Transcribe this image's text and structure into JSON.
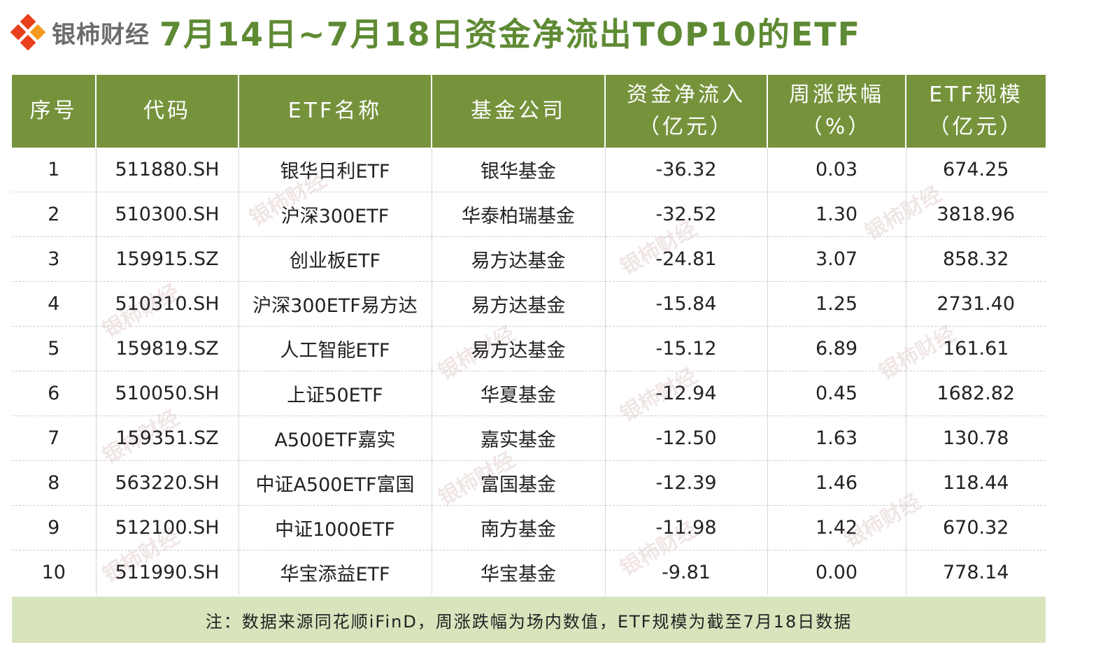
{
  "header": {
    "brand": "银柿财经",
    "title": "7月14日~7月18日资金净流出TOP10的ETF"
  },
  "colors": {
    "header_bg": "#76933c",
    "title": "#5e8a33",
    "footer_bg": "#d8e4bc",
    "logo": "#e8401c"
  },
  "icons": {
    "logo": "diamond-logo-icon"
  },
  "table": {
    "headers": [
      [
        "序号",
        ""
      ],
      [
        "代码",
        ""
      ],
      [
        "ETF名称",
        ""
      ],
      [
        "基金公司",
        ""
      ],
      [
        "资金净流入",
        "（亿元）"
      ],
      [
        "周涨跌幅",
        "（%）"
      ],
      [
        "ETF规模",
        "（亿元）"
      ]
    ],
    "rows": [
      [
        "1",
        "511880.SH",
        "银华日利ETF",
        "银华基金",
        "-36.32",
        "0.03",
        "674.25"
      ],
      [
        "2",
        "510300.SH",
        "沪深300ETF",
        "华泰柏瑞基金",
        "-32.52",
        "1.30",
        "3818.96"
      ],
      [
        "3",
        "159915.SZ",
        "创业板ETF",
        "易方达基金",
        "-24.81",
        "3.07",
        "858.32"
      ],
      [
        "4",
        "510310.SH",
        "沪深300ETF易方达",
        "易方达基金",
        "-15.84",
        "1.25",
        "2731.40"
      ],
      [
        "5",
        "159819.SZ",
        "人工智能ETF",
        "易方达基金",
        "-15.12",
        "6.89",
        "161.61"
      ],
      [
        "6",
        "510050.SH",
        "上证50ETF",
        "华夏基金",
        "-12.94",
        "0.45",
        "1682.82"
      ],
      [
        "7",
        "159351.SZ",
        "A500ETF嘉实",
        "嘉实基金",
        "-12.50",
        "1.63",
        "130.78"
      ],
      [
        "8",
        "563220.SH",
        "中证A500ETF富国",
        "富国基金",
        "-12.39",
        "1.46",
        "118.44"
      ],
      [
        "9",
        "512100.SH",
        "中证1000ETF",
        "南方基金",
        "-11.98",
        "1.42",
        "670.32"
      ],
      [
        "10",
        "511990.SH",
        "华宝添益ETF",
        "华宝基金",
        "-9.81",
        "0.00",
        "778.14"
      ]
    ]
  },
  "footer": {
    "note": "注：数据来源同花顺iFinD，周涨跌幅为场内数值，ETF规模为截至7月18日数据"
  },
  "watermark": "银柿财经"
}
